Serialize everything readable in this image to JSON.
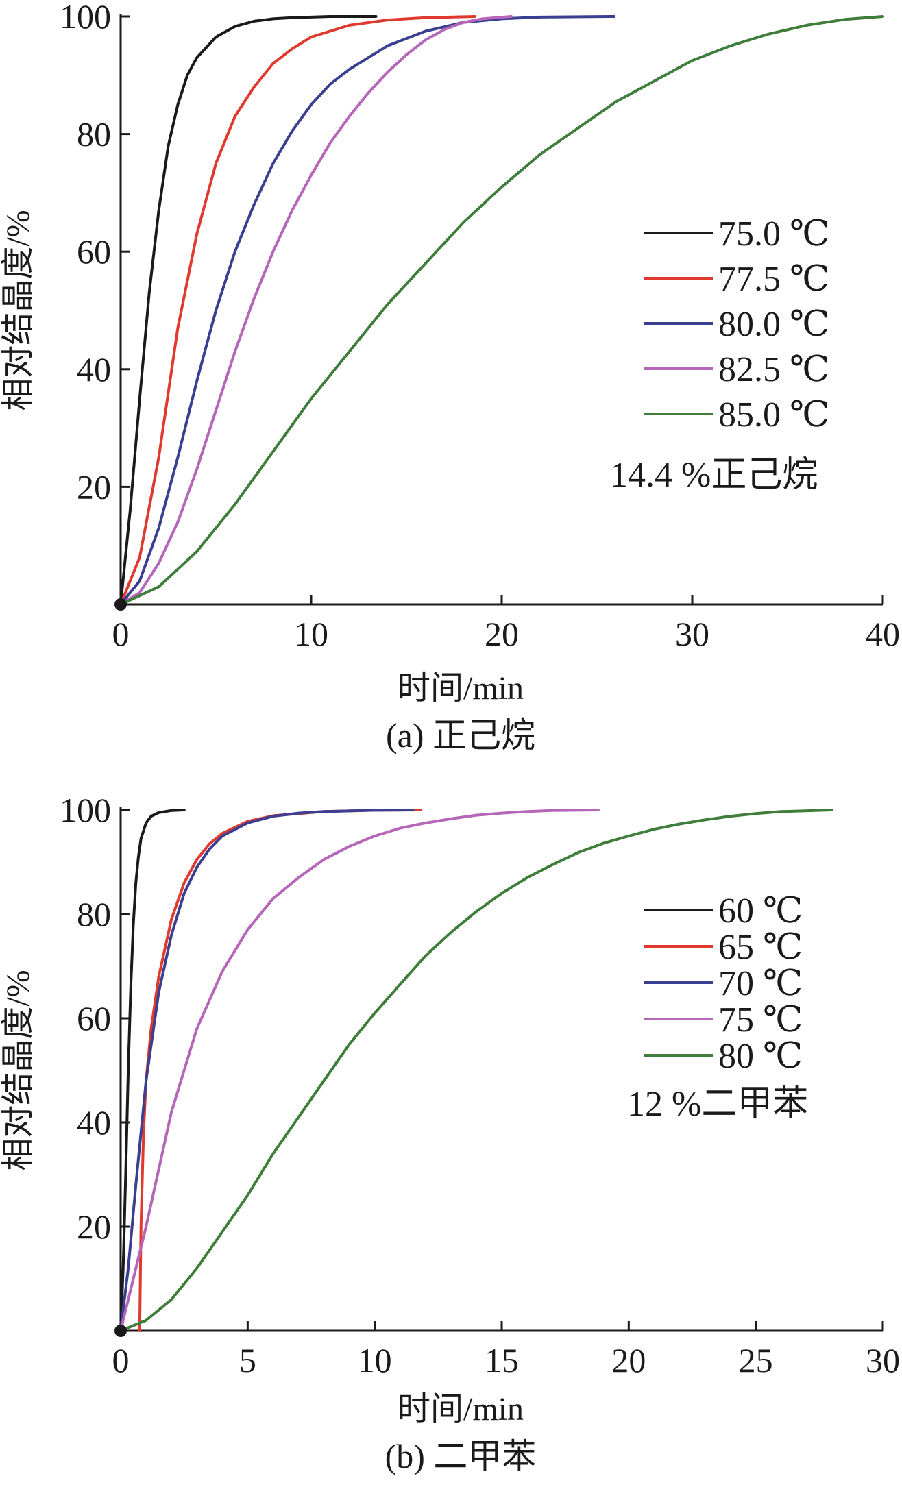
{
  "chart_data": [
    {
      "type": "line",
      "caption": "(a) 正己烷",
      "xlabel": "时间/min",
      "ylabel": "相对结晶度/%",
      "xlim": [
        0,
        40
      ],
      "ylim": [
        0,
        100
      ],
      "xticks": [
        0,
        10,
        20,
        30,
        40
      ],
      "yticks": [
        20,
        40,
        60,
        80,
        100
      ],
      "grid": false,
      "legend_position": "right",
      "annotation": "14.4 %正己烷",
      "series": [
        {
          "name": "75.0 ℃",
          "color": "#1a1a1a",
          "x": [
            0,
            0.5,
            1,
            1.5,
            2,
            2.5,
            3,
            3.5,
            4,
            5,
            6,
            7,
            8,
            9,
            10,
            11,
            12,
            13.4
          ],
          "y": [
            0,
            16,
            35,
            53,
            67,
            78,
            85,
            90,
            93,
            96.5,
            98.3,
            99.2,
            99.6,
            99.8,
            99.9,
            100,
            100,
            100
          ]
        },
        {
          "name": "77.5 ℃",
          "color": "#e03a2f",
          "x": [
            0,
            1,
            2,
            3,
            4,
            5,
            6,
            7,
            8,
            9,
            10,
            12,
            14,
            16,
            18.6
          ],
          "y": [
            0,
            8,
            25,
            47,
            63,
            75,
            83,
            88,
            92,
            94.5,
            96.5,
            98.5,
            99.4,
            99.8,
            100
          ]
        },
        {
          "name": "80.0 ℃",
          "color": "#3b3f91",
          "x": [
            0,
            1,
            2,
            3,
            4,
            5,
            6,
            7,
            8,
            9,
            10,
            11,
            12,
            14,
            16,
            18,
            20,
            22,
            25.9
          ],
          "y": [
            0,
            4,
            13,
            25,
            38,
            50,
            60,
            68,
            75,
            80.5,
            85,
            88.5,
            91,
            95,
            97.5,
            99,
            99.6,
            99.9,
            100
          ]
        },
        {
          "name": "82.5 ℃",
          "color": "#b666b8",
          "x": [
            0,
            1,
            2,
            3,
            4,
            5,
            6,
            7,
            8,
            9,
            10,
            11,
            12,
            13,
            14,
            15,
            16,
            17,
            18,
            19,
            20.5
          ],
          "y": [
            0,
            2,
            7,
            14,
            23,
            33,
            43,
            52,
            60,
            67,
            73,
            78.5,
            83,
            87,
            90.5,
            93.5,
            96,
            97.8,
            99,
            99.6,
            100
          ]
        },
        {
          "name": "85.0 ℃",
          "color": "#3f7d3a",
          "x": [
            0,
            2,
            4,
            6,
            8,
            10,
            12,
            14,
            16,
            18,
            20,
            22,
            24,
            26,
            28,
            30,
            32,
            34,
            36,
            38,
            40
          ],
          "y": [
            0,
            3,
            9,
            17,
            26,
            35,
            43,
            51,
            58,
            65,
            71,
            76.5,
            81,
            85.5,
            89,
            92.5,
            95,
            97,
            98.5,
            99.5,
            100
          ]
        }
      ]
    },
    {
      "type": "line",
      "caption": "(b) 二甲苯",
      "xlabel": "时间/min",
      "ylabel": "相对结晶度/%",
      "xlim": [
        0,
        30
      ],
      "ylim": [
        0,
        100
      ],
      "xticks": [
        0,
        5,
        10,
        15,
        20,
        25,
        30
      ],
      "yticks": [
        20,
        40,
        60,
        80,
        100
      ],
      "grid": false,
      "legend_position": "right",
      "annotation": "12 %二甲苯",
      "series": [
        {
          "name": "60 ℃",
          "color": "#1a1a1a",
          "x": [
            0,
            0.1,
            0.2,
            0.3,
            0.4,
            0.5,
            0.6,
            0.7,
            0.8,
            1.0,
            1.2,
            1.5,
            2.0,
            2.5
          ],
          "y": [
            0,
            12,
            30,
            50,
            66,
            78,
            86,
            91,
            94.5,
            97.5,
            98.8,
            99.5,
            99.9,
            100
          ]
        },
        {
          "name": "65 ℃",
          "color": "#e03a2f",
          "x": [
            0.75,
            0.8,
            0.9,
            1.0,
            1.2,
            1.5,
            2.0,
            2.5,
            3.0,
            3.5,
            4.0,
            5.0,
            6.0,
            8.0,
            10.0,
            11.8
          ],
          "y": [
            0,
            20,
            38,
            48,
            58,
            68,
            79,
            86,
            90.5,
            93.5,
            95.5,
            97.8,
            98.9,
            99.7,
            99.95,
            100
          ]
        },
        {
          "name": "70 ℃",
          "color": "#3b3f91",
          "x": [
            0,
            0.3,
            0.6,
            1.0,
            1.5,
            2.0,
            2.5,
            3.0,
            3.5,
            4.0,
            5.0,
            6.0,
            7.0,
            8.0,
            10.0,
            11.5
          ],
          "y": [
            0,
            12,
            28,
            48,
            65,
            76,
            84,
            89,
            92.5,
            95,
            97.5,
            98.8,
            99.4,
            99.7,
            99.95,
            100
          ]
        },
        {
          "name": "75 ℃",
          "color": "#b666b8",
          "x": [
            0,
            1,
            2,
            3,
            4,
            5,
            6,
            7,
            8,
            9,
            10,
            11,
            12,
            13,
            14,
            15,
            16,
            17,
            18.8
          ],
          "y": [
            0,
            20,
            42,
            58,
            69,
            77,
            83,
            87,
            90.5,
            93,
            95,
            96.5,
            97.5,
            98.3,
            99,
            99.4,
            99.7,
            99.9,
            100
          ]
        },
        {
          "name": "80 ℃",
          "color": "#3f7d3a",
          "x": [
            0,
            1,
            2,
            3,
            4,
            5,
            6,
            7,
            8,
            9,
            10,
            11,
            12,
            13,
            14,
            15,
            16,
            17,
            18,
            19,
            20,
            21,
            22,
            23,
            24,
            25,
            26,
            28
          ],
          "y": [
            0,
            2,
            6,
            12,
            19,
            26,
            34,
            41,
            48,
            55,
            61,
            66.5,
            72,
            76.5,
            80.5,
            84,
            87,
            89.5,
            91.8,
            93.6,
            95,
            96.3,
            97.3,
            98.1,
            98.8,
            99.3,
            99.7,
            100
          ]
        }
      ]
    }
  ]
}
